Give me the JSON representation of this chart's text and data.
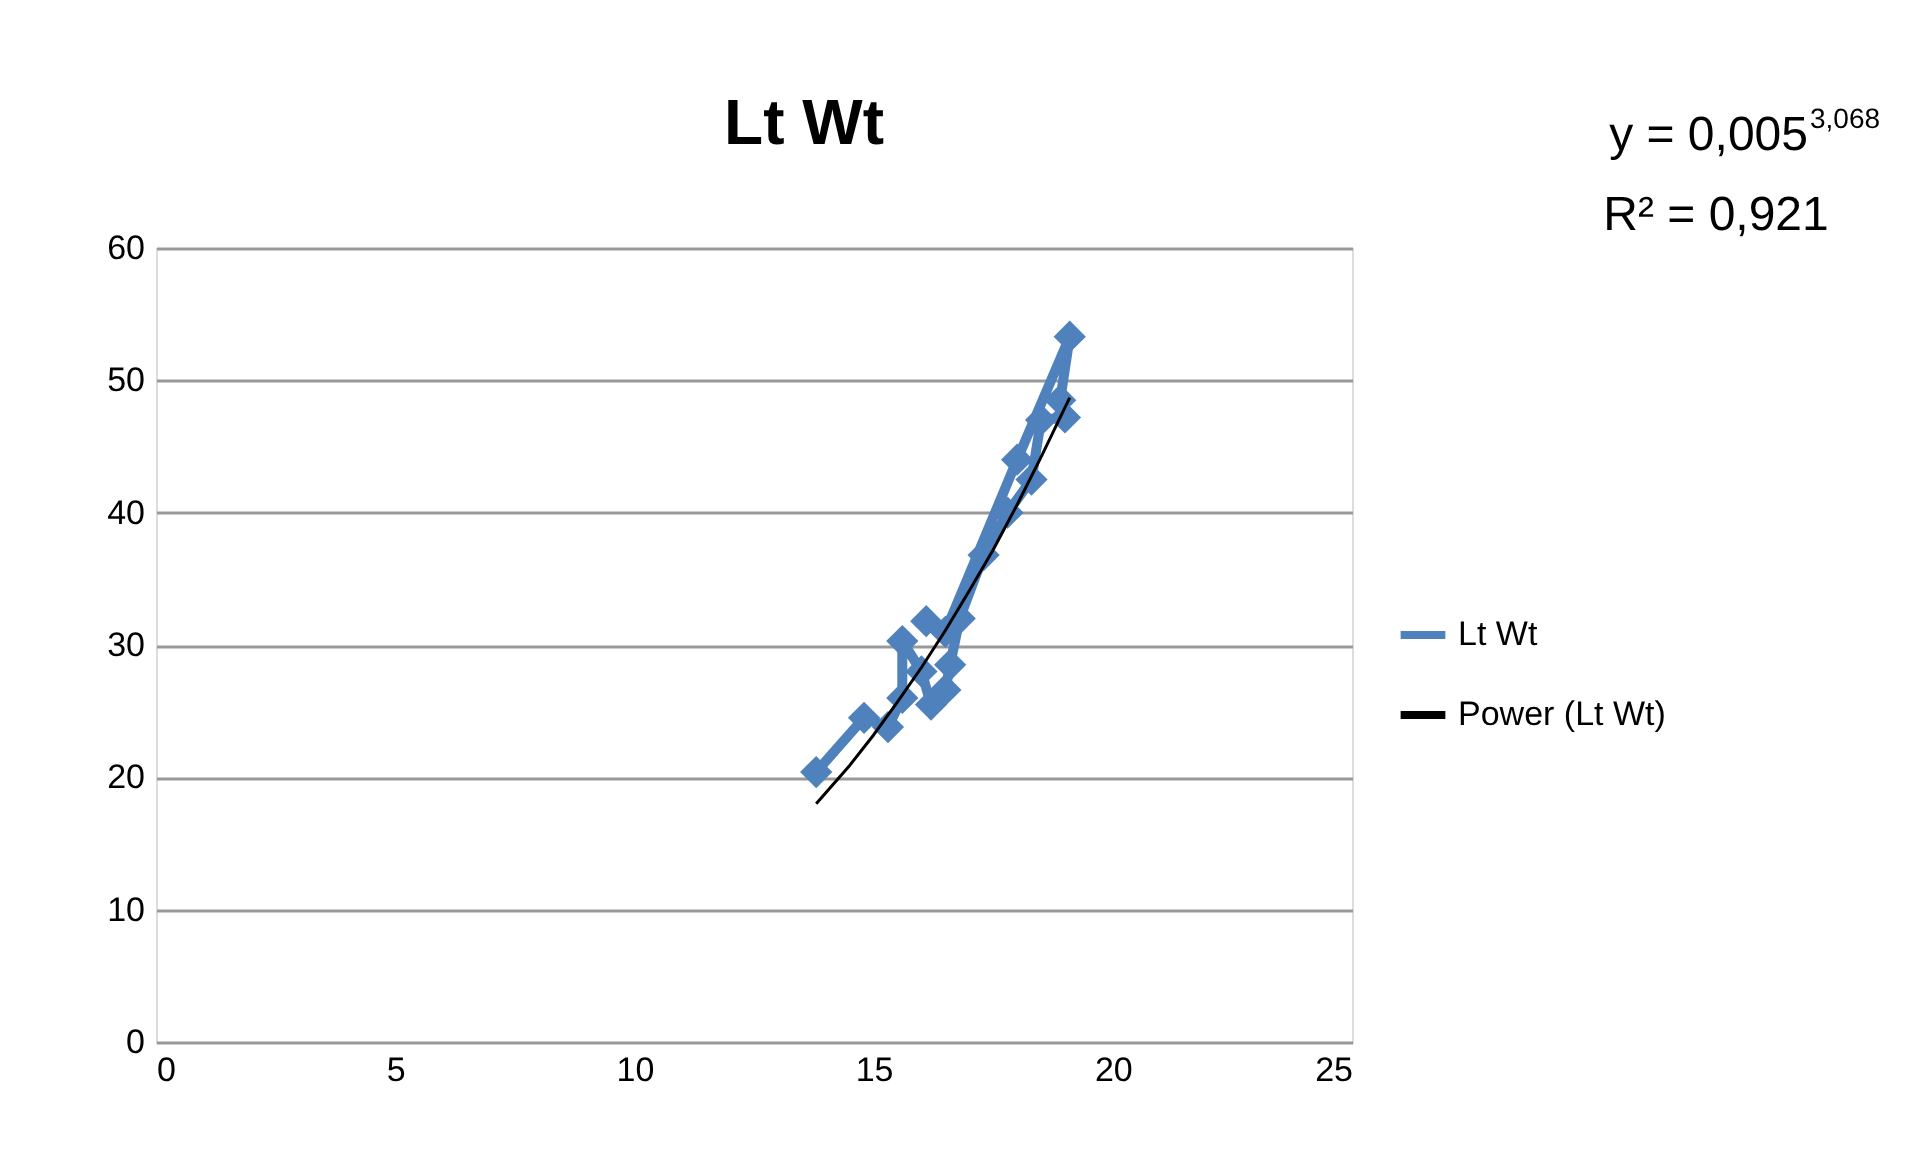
{
  "chart_data": {
    "type": "line",
    "title": "Lt  Wt",
    "series": [
      {
        "name": "Lt  Wt",
        "color": "#4f81bd",
        "marker": "diamond",
        "line_style": "solid",
        "x": [
          13.8,
          14.8,
          15.3,
          15.6,
          15.6,
          16.0,
          16.2,
          16.5,
          16.6,
          16.8,
          17.3,
          17.8,
          18.3,
          18.5,
          19.0,
          18.9,
          19.1,
          18.0,
          16.5,
          16.1
        ],
        "values": [
          20.4,
          24.5,
          23.8,
          26.0,
          30.3,
          28.0,
          25.5,
          26.6,
          28.5,
          32.0,
          36.8,
          40.0,
          42.5,
          47.0,
          47.2,
          48.5,
          53.3,
          44.0,
          31.0,
          31.8
        ]
      },
      {
        "name": "Power (Lt  Wt)",
        "color": "#000000",
        "marker": "none",
        "line_style": "solid",
        "x": [
          13.8,
          14.5,
          15,
          15.5,
          16,
          16.5,
          17,
          17.5,
          18,
          18.5,
          19.1
        ],
        "values": [
          18.0,
          20.9,
          23.2,
          25.7,
          28.3,
          31.1,
          34.1,
          37.2,
          40.6,
          44.2,
          48.7
        ]
      }
    ],
    "xlim": [
      0,
      25
    ],
    "xticks": [
      0,
      5,
      10,
      15,
      20,
      25
    ],
    "ylim": [
      0,
      60
    ],
    "yticks": [
      0,
      10,
      20,
      30,
      40,
      50,
      60
    ],
    "grid": "y",
    "legend": "right",
    "annotations": [
      "y = 0,005$^{3,068}$",
      "R² = 0,921"
    ]
  }
}
